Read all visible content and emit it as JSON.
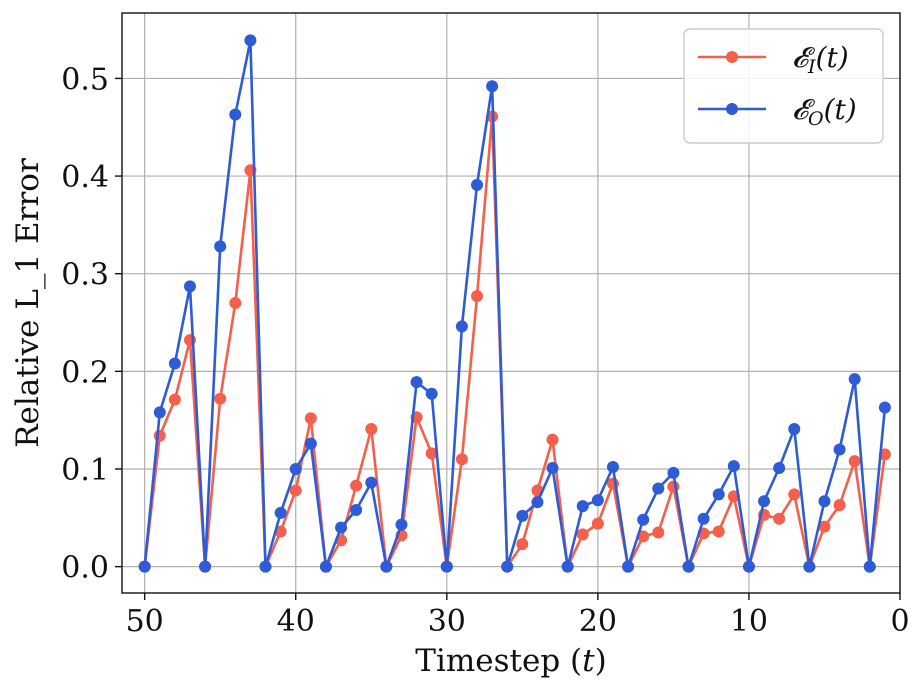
{
  "chart_data": {
    "type": "line",
    "xlabel": "Timestep (t)",
    "ylabel": "Relative L_1 Error",
    "xlim": [
      51.5,
      0
    ],
    "ylim": [
      -0.027,
      0.567
    ],
    "x_inverted": true,
    "grid": true,
    "legend_position": "top-right",
    "xticks": [
      50,
      40,
      30,
      20,
      10,
      0
    ],
    "yticks": [
      0.0,
      0.1,
      0.2,
      0.3,
      0.4,
      0.5
    ],
    "ytick_labels": [
      "0.0",
      "0.1",
      "0.2",
      "0.3",
      "0.4",
      "0.5"
    ],
    "x": [
      50,
      49,
      48,
      47,
      46,
      45,
      44,
      43,
      42,
      41,
      40,
      39,
      38,
      37,
      36,
      35,
      34,
      33,
      32,
      31,
      30,
      29,
      28,
      27,
      26,
      25,
      24,
      23,
      22,
      21,
      20,
      19,
      18,
      17,
      16,
      15,
      14,
      13,
      12,
      11,
      10,
      9,
      8,
      7,
      6,
      5,
      4,
      3,
      2,
      1
    ],
    "series": [
      {
        "name": "𝓔_I(t)",
        "color": "#f4604c",
        "values": [
          0.0,
          0.134,
          0.171,
          0.232,
          0.0,
          0.172,
          0.27,
          0.406,
          0.0,
          0.036,
          0.078,
          0.152,
          0.0,
          0.027,
          0.083,
          0.141,
          0.0,
          0.032,
          0.153,
          0.116,
          0.0,
          0.11,
          0.277,
          0.461,
          0.0,
          0.023,
          0.078,
          0.13,
          0.0,
          0.033,
          0.044,
          0.085,
          0.0,
          0.031,
          0.035,
          0.082,
          0.0,
          0.034,
          0.036,
          0.072,
          0.0,
          0.053,
          0.049,
          0.074,
          0.0,
          0.041,
          0.063,
          0.108,
          0.0,
          0.115
        ]
      },
      {
        "name": "𝓔_O(t)",
        "color": "#2e5bd6",
        "values": [
          0.0,
          0.158,
          0.208,
          0.287,
          0.0,
          0.328,
          0.463,
          0.539,
          0.0,
          0.055,
          0.1,
          0.126,
          0.0,
          0.04,
          0.058,
          0.086,
          0.0,
          0.043,
          0.189,
          0.177,
          0.0,
          0.246,
          0.391,
          0.492,
          0.0,
          0.052,
          0.066,
          0.101,
          0.0,
          0.062,
          0.068,
          0.102,
          0.0,
          0.048,
          0.08,
          0.096,
          0.0,
          0.049,
          0.074,
          0.103,
          0.0,
          0.067,
          0.101,
          0.141,
          0.0,
          0.067,
          0.12,
          0.192,
          0.0,
          0.163
        ]
      }
    ]
  }
}
